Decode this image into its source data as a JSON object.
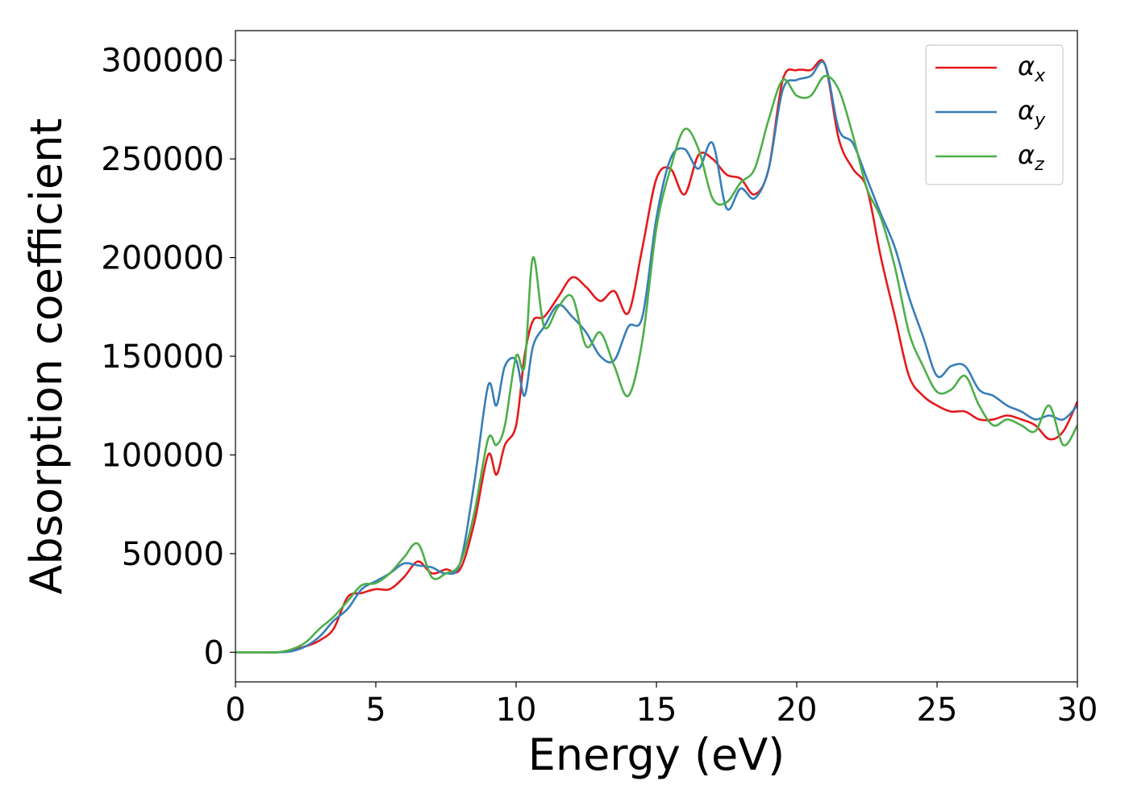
{
  "chart_data": {
    "type": "line",
    "title": "",
    "xlabel": "Energy (eV)",
    "ylabel": "Absorption coefficient",
    "xlim": [
      0,
      30
    ],
    "ylim": [
      -15000,
      315000
    ],
    "xticks": [
      0,
      5,
      10,
      15,
      20,
      25,
      30
    ],
    "xtick_labels": [
      "0",
      "5",
      "10",
      "15",
      "20",
      "25",
      "30"
    ],
    "yticks": [
      0,
      50000,
      100000,
      150000,
      200000,
      250000,
      300000
    ],
    "ytick_labels": [
      "0",
      "50000",
      "100000",
      "150000",
      "200000",
      "250000",
      "300000"
    ],
    "grid": false,
    "legend_position": "top-right",
    "series": [
      {
        "name": "α_x",
        "color": "#e41a1c",
        "x": [
          0,
          1,
          1.5,
          2,
          2.5,
          3,
          3.5,
          4,
          4.5,
          5,
          5.5,
          6,
          6.5,
          7,
          7.5,
          8,
          8.5,
          9,
          9.3,
          9.6,
          10,
          10.3,
          10.6,
          11,
          11.5,
          12,
          12.5,
          13,
          13.5,
          14,
          14.5,
          15,
          15.5,
          16,
          16.5,
          17,
          17.5,
          18,
          18.5,
          19,
          19.5,
          20,
          20.5,
          21,
          21.5,
          22,
          22.5,
          23,
          23.5,
          24,
          24.5,
          25,
          25.5,
          26,
          26.5,
          27,
          27.5,
          28,
          28.5,
          29,
          29.5,
          30
        ],
        "y": [
          0,
          0,
          0,
          1000,
          3000,
          6000,
          12000,
          28000,
          30000,
          32000,
          32000,
          38000,
          46000,
          40000,
          42000,
          42000,
          65000,
          100000,
          90000,
          105000,
          115000,
          150000,
          168000,
          170000,
          180000,
          190000,
          185000,
          178000,
          183000,
          172000,
          205000,
          240000,
          245000,
          232000,
          252000,
          250000,
          242000,
          240000,
          232000,
          245000,
          290000,
          295000,
          295000,
          298000,
          260000,
          245000,
          235000,
          200000,
          170000,
          140000,
          130000,
          125000,
          122000,
          122000,
          118000,
          118000,
          120000,
          118000,
          115000,
          108000,
          112000,
          127000
        ]
      },
      {
        "name": "α_y",
        "color": "#377eb8",
        "x": [
          0,
          1,
          1.5,
          2,
          2.5,
          3,
          3.5,
          4,
          4.5,
          5,
          5.5,
          6,
          6.5,
          7,
          7.5,
          8,
          8.5,
          9,
          9.3,
          9.6,
          10,
          10.3,
          10.6,
          11,
          11.5,
          12,
          12.5,
          13,
          13.5,
          14,
          14.5,
          15,
          15.5,
          16,
          16.5,
          17,
          17.5,
          18,
          18.5,
          19,
          19.5,
          20,
          20.5,
          21,
          21.5,
          22,
          22.5,
          23,
          23.5,
          24,
          24.5,
          25,
          25.5,
          26,
          26.5,
          27,
          27.5,
          28,
          28.5,
          29,
          29.5,
          30
        ],
        "y": [
          0,
          0,
          0,
          500,
          3000,
          8000,
          16000,
          22000,
          32000,
          36000,
          40000,
          45000,
          44000,
          43000,
          40000,
          45000,
          85000,
          135000,
          125000,
          145000,
          148000,
          130000,
          155000,
          165000,
          176000,
          170000,
          162000,
          150000,
          148000,
          165000,
          170000,
          220000,
          250000,
          255000,
          245000,
          258000,
          225000,
          235000,
          230000,
          245000,
          285000,
          290000,
          292000,
          298000,
          265000,
          258000,
          240000,
          222000,
          205000,
          180000,
          160000,
          140000,
          145000,
          145000,
          133000,
          130000,
          125000,
          122000,
          118000,
          120000,
          118000,
          125000
        ]
      },
      {
        "name": "α_z",
        "color": "#4daf4a",
        "x": [
          0,
          1,
          1.5,
          2,
          2.5,
          3,
          3.5,
          4,
          4.5,
          5,
          5.5,
          6,
          6.5,
          7,
          7.5,
          8,
          8.5,
          9,
          9.3,
          9.6,
          10,
          10.3,
          10.6,
          11,
          11.5,
          12,
          12.5,
          13,
          13.5,
          14,
          14.5,
          15,
          15.5,
          16,
          16.5,
          17,
          17.5,
          18,
          18.5,
          19,
          19.5,
          20,
          20.5,
          21,
          21.5,
          22,
          22.5,
          23,
          23.5,
          24,
          24.5,
          25,
          25.5,
          26,
          26.5,
          27,
          27.5,
          28,
          28.5,
          29,
          29.5,
          30
        ],
        "y": [
          0,
          0,
          0,
          1500,
          5000,
          12000,
          18000,
          26000,
          34000,
          35000,
          40000,
          48000,
          55000,
          38000,
          40000,
          45000,
          70000,
          108000,
          105000,
          115000,
          150000,
          145000,
          200000,
          165000,
          175000,
          180000,
          155000,
          162000,
          145000,
          130000,
          158000,
          215000,
          245000,
          265000,
          255000,
          230000,
          228000,
          238000,
          245000,
          270000,
          290000,
          282000,
          282000,
          292000,
          285000,
          262000,
          235000,
          220000,
          195000,
          162000,
          145000,
          132000,
          133000,
          140000,
          125000,
          115000,
          118000,
          115000,
          112000,
          125000,
          105000,
          115000
        ]
      }
    ]
  }
}
